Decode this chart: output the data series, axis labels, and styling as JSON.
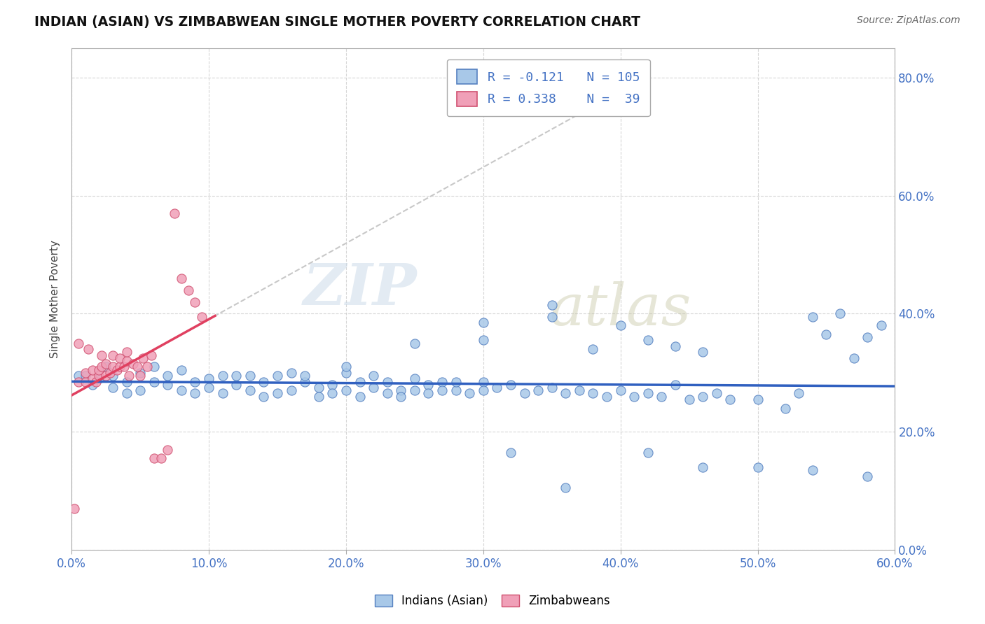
{
  "title": "INDIAN (ASIAN) VS ZIMBABWEAN SINGLE MOTHER POVERTY CORRELATION CHART",
  "source": "Source: ZipAtlas.com",
  "xmin": 0.0,
  "xmax": 0.6,
  "ymin": 0.0,
  "ymax": 0.85,
  "indian_color": "#a8c8e8",
  "zimbabwean_color": "#f0a0b8",
  "indian_edge": "#5580c0",
  "zimbabwean_edge": "#d05070",
  "trendline_indian_color": "#3060c0",
  "trendline_zimbabwean_color": "#e04060",
  "watermark_zip": "ZIP",
  "watermark_atlas": "atlas",
  "indian_x": [
    0.005,
    0.01,
    0.015,
    0.02,
    0.025,
    0.03,
    0.03,
    0.04,
    0.04,
    0.05,
    0.05,
    0.06,
    0.06,
    0.07,
    0.07,
    0.08,
    0.08,
    0.09,
    0.09,
    0.1,
    0.1,
    0.11,
    0.11,
    0.12,
    0.12,
    0.13,
    0.13,
    0.14,
    0.14,
    0.15,
    0.15,
    0.16,
    0.16,
    0.17,
    0.17,
    0.18,
    0.18,
    0.19,
    0.19,
    0.2,
    0.2,
    0.21,
    0.21,
    0.22,
    0.22,
    0.23,
    0.23,
    0.24,
    0.24,
    0.25,
    0.25,
    0.26,
    0.26,
    0.27,
    0.27,
    0.28,
    0.28,
    0.29,
    0.3,
    0.3,
    0.31,
    0.32,
    0.33,
    0.34,
    0.35,
    0.36,
    0.37,
    0.38,
    0.39,
    0.4,
    0.41,
    0.42,
    0.43,
    0.44,
    0.45,
    0.46,
    0.47,
    0.48,
    0.5,
    0.52,
    0.53,
    0.54,
    0.55,
    0.56,
    0.57,
    0.58,
    0.59,
    0.3,
    0.35,
    0.38,
    0.4,
    0.42,
    0.44,
    0.46,
    0.32,
    0.36,
    0.5,
    0.54,
    0.58,
    0.42,
    0.46,
    0.2,
    0.25,
    0.3,
    0.35
  ],
  "indian_y": [
    0.295,
    0.295,
    0.28,
    0.29,
    0.31,
    0.295,
    0.275,
    0.285,
    0.265,
    0.3,
    0.27,
    0.285,
    0.31,
    0.28,
    0.295,
    0.305,
    0.27,
    0.285,
    0.265,
    0.29,
    0.275,
    0.295,
    0.265,
    0.28,
    0.295,
    0.27,
    0.295,
    0.285,
    0.26,
    0.295,
    0.265,
    0.3,
    0.27,
    0.285,
    0.295,
    0.275,
    0.26,
    0.28,
    0.265,
    0.3,
    0.27,
    0.285,
    0.26,
    0.295,
    0.275,
    0.265,
    0.285,
    0.27,
    0.26,
    0.29,
    0.27,
    0.28,
    0.265,
    0.285,
    0.27,
    0.27,
    0.285,
    0.265,
    0.285,
    0.27,
    0.275,
    0.28,
    0.265,
    0.27,
    0.275,
    0.265,
    0.27,
    0.265,
    0.26,
    0.27,
    0.26,
    0.265,
    0.26,
    0.28,
    0.255,
    0.26,
    0.265,
    0.255,
    0.255,
    0.24,
    0.265,
    0.395,
    0.365,
    0.4,
    0.325,
    0.36,
    0.38,
    0.355,
    0.395,
    0.34,
    0.38,
    0.355,
    0.345,
    0.335,
    0.165,
    0.105,
    0.14,
    0.135,
    0.125,
    0.165,
    0.14,
    0.31,
    0.35,
    0.385,
    0.415
  ],
  "zimbabwean_x": [
    0.002,
    0.005,
    0.005,
    0.01,
    0.01,
    0.012,
    0.015,
    0.015,
    0.018,
    0.02,
    0.02,
    0.022,
    0.022,
    0.025,
    0.025,
    0.028,
    0.03,
    0.03,
    0.033,
    0.035,
    0.035,
    0.038,
    0.04,
    0.04,
    0.042,
    0.045,
    0.048,
    0.05,
    0.052,
    0.055,
    0.058,
    0.06,
    0.065,
    0.07,
    0.075,
    0.08,
    0.085,
    0.09,
    0.095
  ],
  "zimbabwean_y": [
    0.07,
    0.285,
    0.35,
    0.285,
    0.3,
    0.34,
    0.29,
    0.305,
    0.285,
    0.295,
    0.305,
    0.31,
    0.33,
    0.295,
    0.315,
    0.3,
    0.31,
    0.33,
    0.305,
    0.31,
    0.325,
    0.31,
    0.32,
    0.335,
    0.295,
    0.315,
    0.31,
    0.295,
    0.325,
    0.31,
    0.33,
    0.155,
    0.155,
    0.17,
    0.57,
    0.46,
    0.44,
    0.42,
    0.395
  ]
}
